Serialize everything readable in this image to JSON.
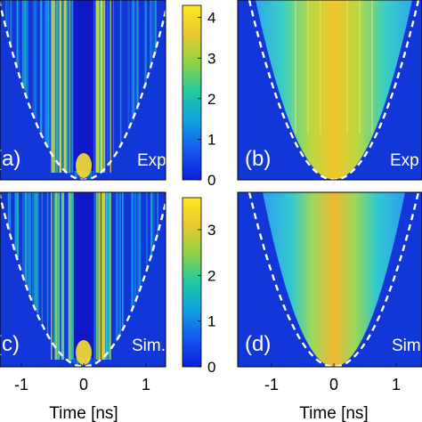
{
  "chart_data": [
    {
      "type": "heatmap",
      "panel_label": "(a)",
      "corner_text": "Exp.",
      "xlabel": "",
      "xlim": [
        -1.3,
        1.3
      ],
      "xticks": [],
      "colorbar": {
        "ticks": [
          0,
          1,
          2,
          3,
          4
        ],
        "range": [
          0,
          4.3
        ]
      },
      "envelope": "parabola (white dashed)"
    },
    {
      "type": "heatmap",
      "panel_label": "(b)",
      "corner_text": "Exp",
      "xlabel": "",
      "xlim": [
        -1.3,
        1.3
      ],
      "xticks": [],
      "envelope": "parabola (white dashed)"
    },
    {
      "type": "heatmap",
      "panel_label": "(c)",
      "corner_text": "Sim.",
      "xlabel": "Time [ns]",
      "xlim": [
        -1.3,
        1.3
      ],
      "xticks": [
        -1,
        0,
        1
      ],
      "colorbar": {
        "ticks": [
          0,
          1,
          2,
          3
        ],
        "range": [
          0,
          3.7
        ]
      },
      "envelope": "parabola (white dashed)"
    },
    {
      "type": "heatmap",
      "panel_label": "(d)",
      "corner_text": "Sim",
      "xlabel": "Time [ns]",
      "xlim": [
        -1.3,
        1.3
      ],
      "xticks": [
        -1,
        0,
        1
      ],
      "envelope": "parabola (white dashed)"
    }
  ],
  "colors": {
    "background": "#1f3fc7",
    "colormap": [
      "#0c1fd8",
      "#1457f0",
      "#10a0e0",
      "#20c8a0",
      "#8cd348",
      "#e8c830",
      "#ffe820"
    ],
    "envelope": "#ffffff"
  }
}
